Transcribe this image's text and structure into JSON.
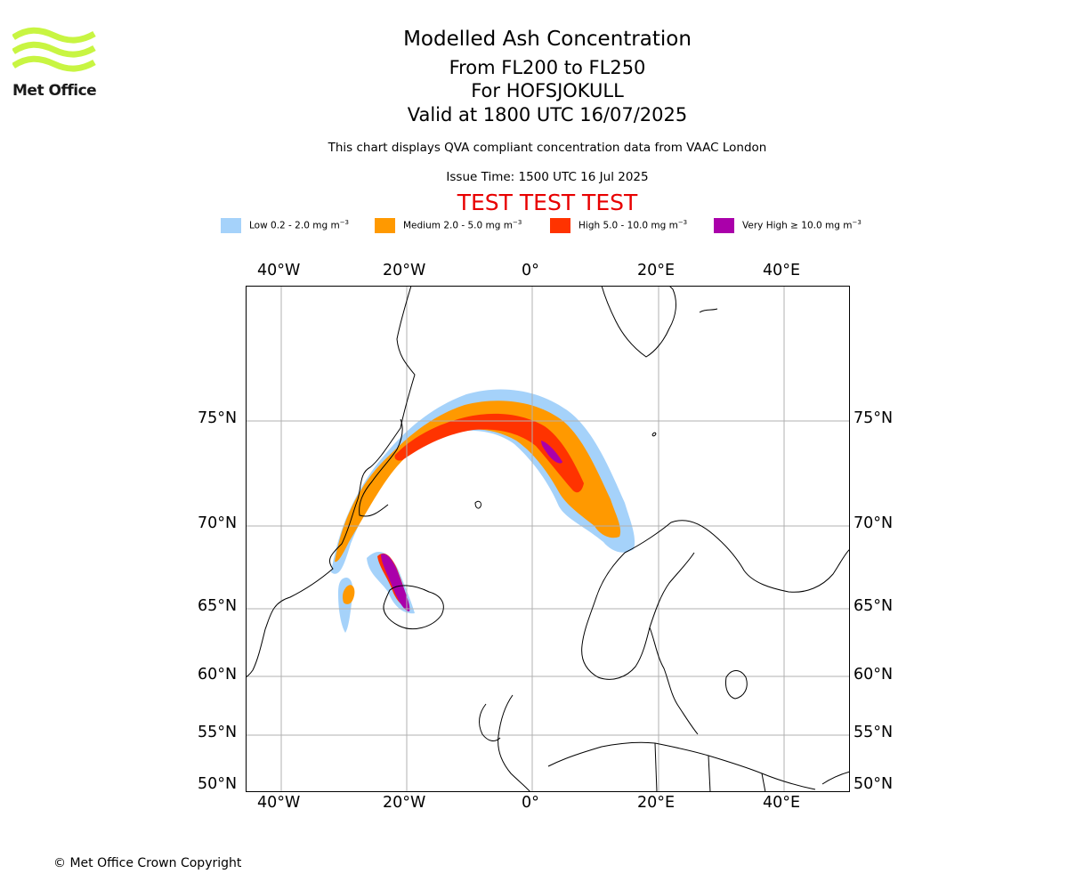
{
  "branding": {
    "logo_text": "Met Office",
    "logo_color": "#c8f542"
  },
  "header": {
    "title": "Modelled Ash Concentration",
    "levels": "From FL200 to FL250",
    "volcano": "For HOFSJOKULL",
    "valid": "Valid at 1800 UTC 16/07/2025",
    "description": "This chart displays QVA compliant concentration data from VAAC London",
    "issue_time": "Issue Time: 1500 UTC 16 Jul 2025",
    "test_banner": "TEST TEST TEST",
    "test_color": "#e80000"
  },
  "legend": [
    {
      "label": "Low 0.2 - 2.0 mg m",
      "color": "#a5d2fa"
    },
    {
      "label": "Medium 2.0 - 5.0 mg m",
      "color": "#ff9900"
    },
    {
      "label": "High 5.0 - 10.0 mg m",
      "color": "#ff3300"
    },
    {
      "label": "Very High ≥ 10.0 mg m",
      "color": "#aa00aa"
    }
  ],
  "legend_unit_exponent": "−3",
  "map": {
    "lon_labels": [
      "40°W",
      "20°W",
      "0°",
      "20°E",
      "40°E"
    ],
    "lat_labels": [
      "75°N",
      "70°N",
      "65°N",
      "60°N",
      "55°N",
      "50°N"
    ],
    "grid": true,
    "gridline_color": "#b0b0b0"
  },
  "footer": {
    "copyright": "© Met Office Crown Copyright"
  }
}
